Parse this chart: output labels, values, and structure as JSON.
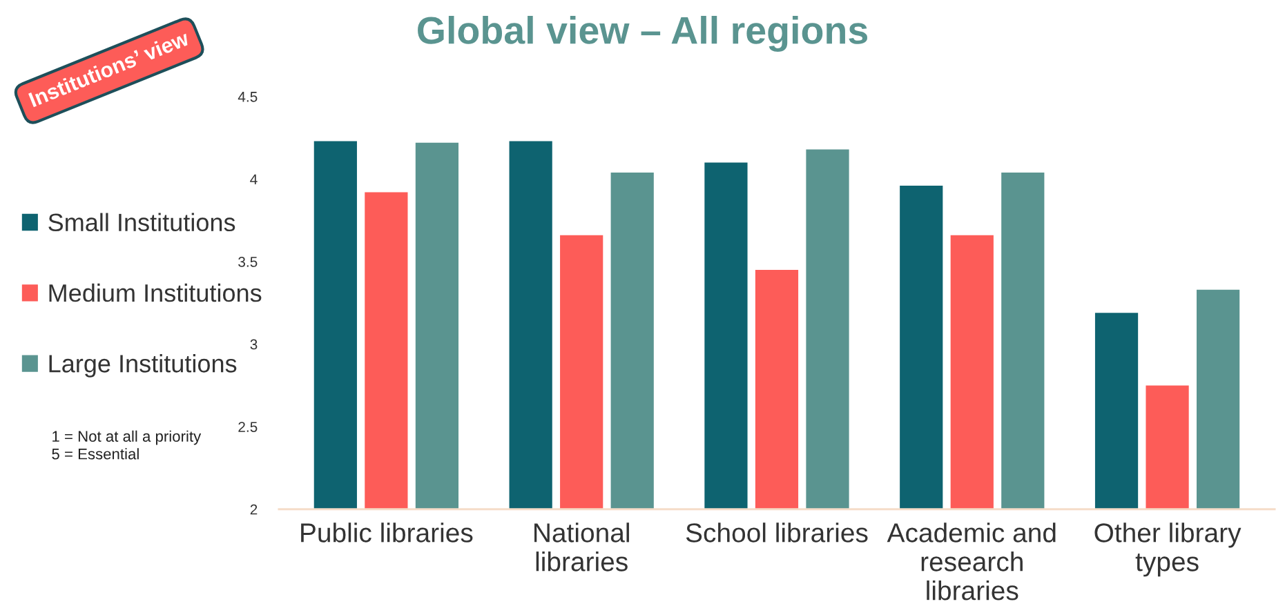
{
  "chart_data": {
    "type": "bar",
    "title": "Global view – All regions",
    "categories": [
      "Public libraries",
      "National\nlibraries",
      "School libraries",
      "Academic and\nresearch\nlibraries",
      "Other library\ntypes"
    ],
    "series": [
      {
        "name": "Small Institutions",
        "color": "#0e6370",
        "values": [
          4.23,
          4.23,
          4.1,
          3.96,
          3.19
        ]
      },
      {
        "name": "Medium Institutions",
        "color": "#fd5c58",
        "values": [
          3.92,
          3.66,
          3.45,
          3.66,
          2.75
        ]
      },
      {
        "name": "Large Institutions",
        "color": "#5a9490",
        "values": [
          4.22,
          4.04,
          4.18,
          4.04,
          3.33
        ]
      }
    ],
    "ylim": [
      2,
      4.5
    ],
    "yticks": [
      2,
      2.5,
      3,
      3.5,
      4,
      4.5
    ],
    "grid": false,
    "legend": "left",
    "annotations": [
      "Institutions’ view",
      "1 = Not at all a priority\n5 = Essential"
    ]
  }
}
